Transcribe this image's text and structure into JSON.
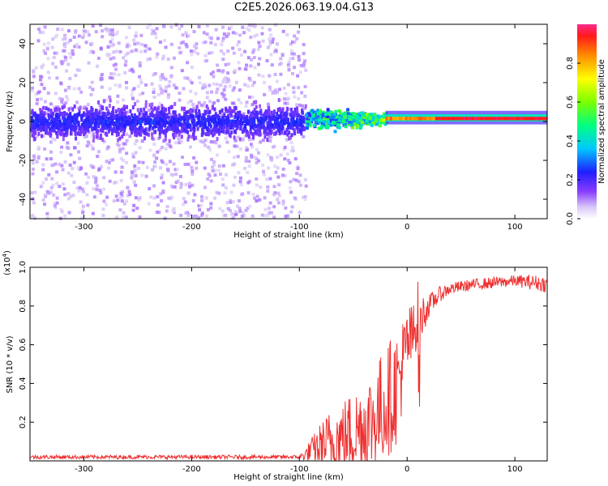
{
  "title": "C2E5.2026.063.19.04.G13",
  "chart_data": [
    {
      "type": "heatmap",
      "name": "spectrogram",
      "xlabel": "Height of straight line (km)",
      "ylabel": "Frequency (Hz)",
      "xlim": [
        -350,
        130
      ],
      "ylim": [
        -50,
        50
      ],
      "xticks": [
        -300,
        -200,
        -100,
        0,
        100
      ],
      "yticks": [
        -40,
        -20,
        0,
        20,
        40
      ],
      "colorbar": {
        "label": "Normalized spectral amplitude",
        "range": [
          0.0,
          1.0
        ],
        "ticks": [
          0.0,
          0.2,
          0.4,
          0.6,
          0.8
        ],
        "colormap": "rainbow"
      },
      "description_bands": [
        {
          "x": [
            -350,
            -95
          ],
          "freq_center": 0,
          "freq_halfwidth": 10,
          "amplitude": 0.2,
          "scatter_halfwidth": 50
        },
        {
          "x": [
            -95,
            -20
          ],
          "freq_center": 1,
          "freq_halfwidth": 6,
          "amplitude": 0.5
        },
        {
          "x": [
            -20,
            130
          ],
          "freq_center": 1.5,
          "freq_halfwidth": 2,
          "amplitude": 0.95
        }
      ]
    },
    {
      "type": "line",
      "name": "snr",
      "xlabel": "Height of straight line (km)",
      "ylabel": "SNR (10 * v/v)",
      "yscale_label": "(x10",
      "yscale_exp": "4",
      "yscale_close": ")",
      "xlim": [
        -350,
        130
      ],
      "ylim": [
        0,
        1.0
      ],
      "xticks": [
        -300,
        -200,
        -100,
        0,
        100
      ],
      "yticks": [
        0.2,
        0.4,
        0.6,
        0.8,
        1.0
      ],
      "color": "#ee3030",
      "envelope": {
        "x": [
          -350,
          -100,
          -95,
          -90,
          -80,
          -70,
          -60,
          -50,
          -40,
          -30,
          -20,
          -10,
          -5,
          0,
          5,
          10,
          15,
          20,
          30,
          40,
          50,
          60,
          80,
          100,
          120,
          130
        ],
        "base": [
          0.02,
          0.02,
          0.03,
          0.05,
          0.08,
          0.1,
          0.12,
          0.15,
          0.18,
          0.22,
          0.3,
          0.38,
          0.48,
          0.6,
          0.64,
          0.7,
          0.76,
          0.8,
          0.86,
          0.89,
          0.9,
          0.91,
          0.92,
          0.93,
          0.92,
          0.91
        ],
        "noise": [
          0.01,
          0.01,
          0.03,
          0.06,
          0.12,
          0.18,
          0.2,
          0.22,
          0.25,
          0.28,
          0.3,
          0.3,
          0.25,
          0.2,
          0.18,
          0.15,
          0.1,
          0.06,
          0.04,
          0.03,
          0.03,
          0.03,
          0.03,
          0.03,
          0.04,
          0.04
        ]
      }
    }
  ]
}
